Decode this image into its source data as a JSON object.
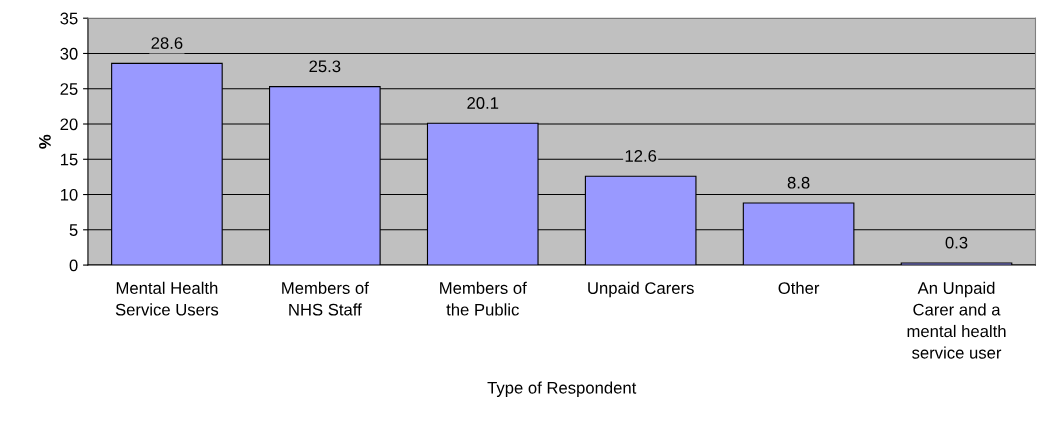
{
  "chart_data": {
    "type": "bar",
    "xlabel": "Type of Respondent",
    "ylabel": "%",
    "categories": [
      "Mental Health\nService Users",
      "Members of\nNHS Staff",
      "Members of\nthe Public",
      "Unpaid Carers",
      "Other",
      "An Unpaid\nCarer and a\nmental health\nservice user"
    ],
    "values": [
      28.6,
      25.3,
      20.1,
      12.6,
      8.8,
      0.3
    ],
    "color": "#9999ff",
    "ylim": [
      0,
      35
    ],
    "yticks": [
      0,
      5,
      10,
      15,
      20,
      25,
      30,
      35
    ],
    "grid": "y",
    "data_labels": true
  }
}
